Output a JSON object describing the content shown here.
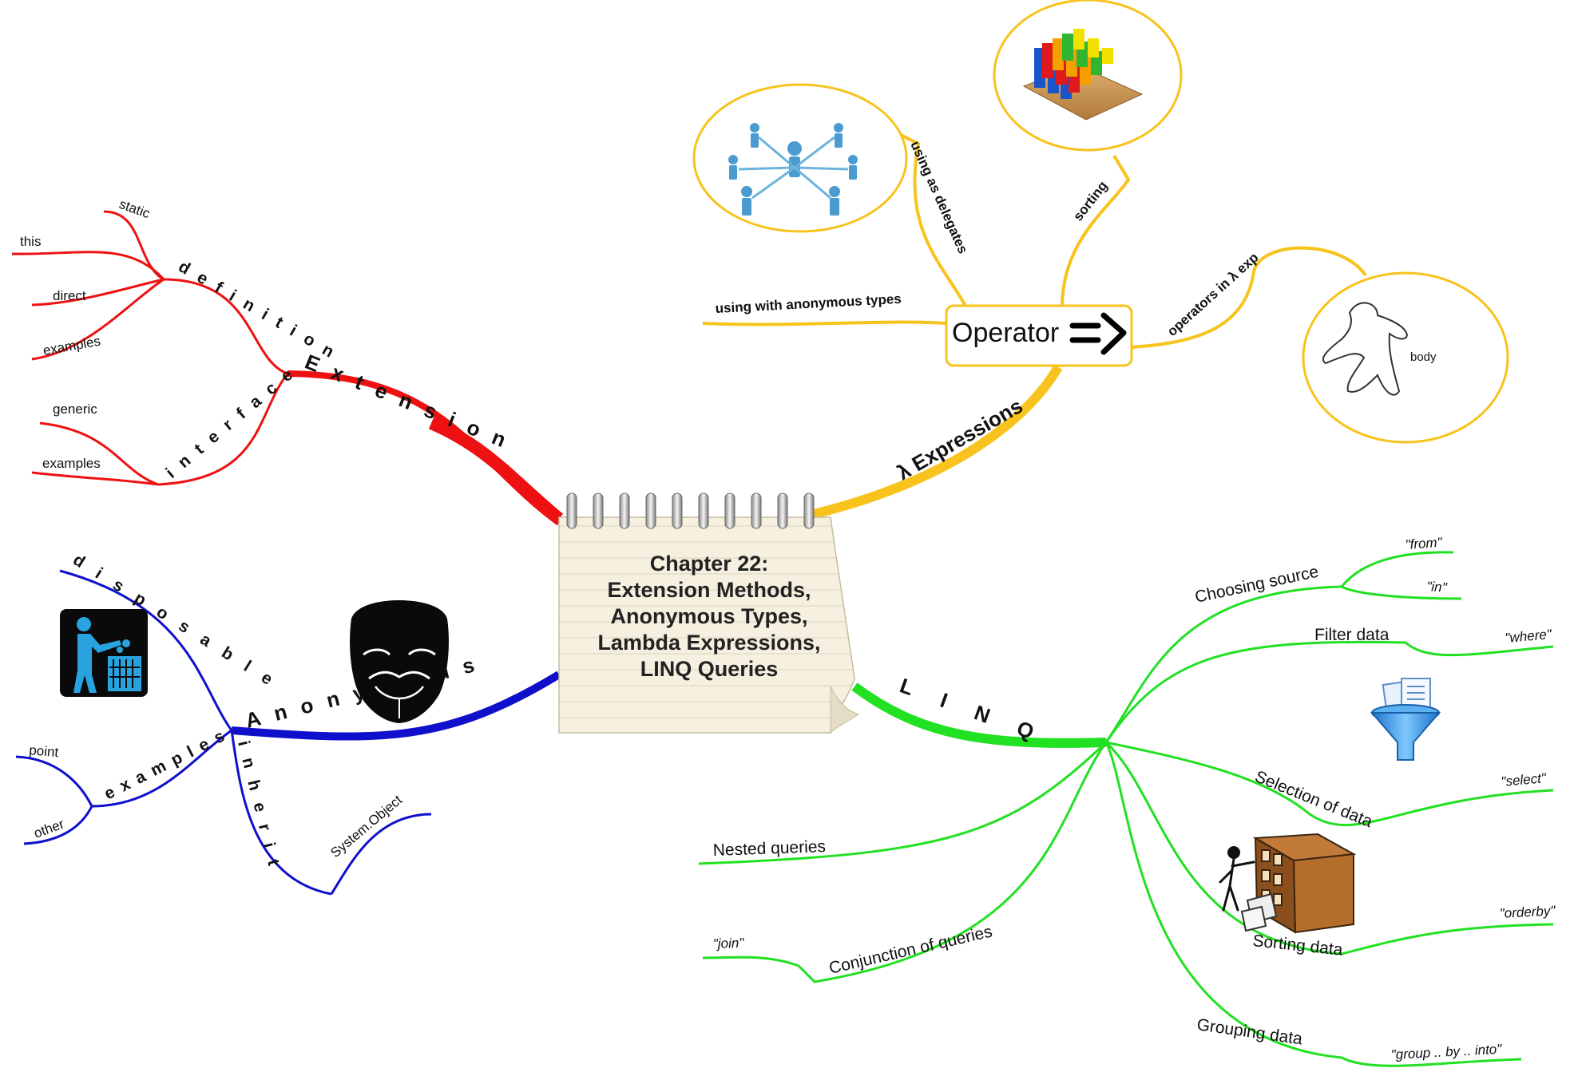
{
  "center": {
    "lines": [
      "Chapter 22:",
      "Extension Methods,",
      "Anonymous Types,",
      "Lambda Expressions,",
      "LINQ Queries"
    ]
  },
  "extension": {
    "label": "Extension",
    "color": "#ee1111",
    "definition": "definition",
    "interface": "interface",
    "def_items": [
      "static",
      "this",
      "direct",
      "examples"
    ],
    "iface_items": [
      "generic",
      "examples"
    ]
  },
  "anonymous": {
    "label": "Anonymous",
    "color": "#1010cc",
    "disposable": "disposable",
    "inherit": "inherit",
    "inherit_item": "System.Object",
    "examples": "examples",
    "ex_items": [
      "point",
      "other"
    ],
    "icons": [
      "trash-can-person-icon",
      "guy-fawkes-mask-icon"
    ]
  },
  "lambda": {
    "label": "λ Expressions",
    "color": "#f7c31c",
    "operator_box": "Operator",
    "operator_symbol": "=>",
    "branches": [
      "using with anonymous types",
      "using as delegates",
      "sorting",
      "operators in λ exp"
    ],
    "body_label": "body",
    "icons": [
      "network-people-icon",
      "bar-blocks-icon",
      "gingerbread-body-icon"
    ]
  },
  "linq": {
    "label": "LINQ",
    "color": "#22e022",
    "branches": {
      "choosing_source": "Choosing source",
      "from": "\"from\"",
      "in": "\"in\"",
      "filter": "Filter data",
      "where": "\"where\"",
      "selection": "Selection of data",
      "select": "\"select\"",
      "sorting": "Sorting data",
      "orderby": "\"orderby\"",
      "grouping": "Grouping data",
      "group": "\"group .. by .. into\"",
      "nested": "Nested queries",
      "conjunction": "Conjunction of queries",
      "join": "\"join\""
    },
    "icons": [
      "funnel-document-icon",
      "filing-cabinet-person-icon"
    ]
  }
}
